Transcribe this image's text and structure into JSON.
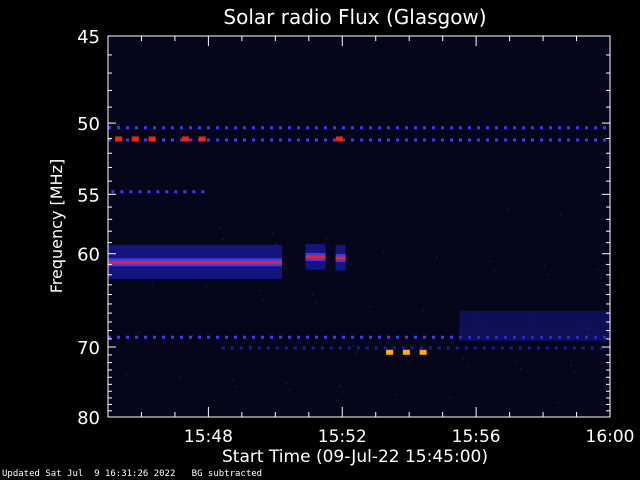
{
  "chart_data": {
    "type": "heatmap",
    "title": "Solar radio Flux (Glasgow)",
    "xlabel": "Start Time (09-Jul-22 15:45:00)",
    "ylabel": "Frequency [MHz]",
    "x_tick_labels": [
      "15:48",
      "15:52",
      "15:56",
      "16:00"
    ],
    "x_ticks_min": [
      3,
      7,
      11,
      15
    ],
    "xlim_min": [
      0,
      15
    ],
    "y_ticks": [
      45,
      50,
      55,
      60,
      70,
      80
    ],
    "y_scale": "reciprocal",
    "ylim": [
      45,
      80
    ],
    "grid": false,
    "background_color": "#06061a",
    "colors": {
      "weak": "#1a1aa0",
      "medium": "#3a3aff",
      "strong": "#ff2000",
      "peak": "#ffb000"
    },
    "features": [
      {
        "kind": "continuous_band",
        "freq_mhz": 60.8,
        "t_start_min": 0.0,
        "t_end_min": 5.2,
        "width_mhz": 1.6,
        "intensity": "strong"
      },
      {
        "kind": "continuous_band",
        "freq_mhz": 60.3,
        "t_start_min": 5.9,
        "t_end_min": 6.5,
        "width_mhz": 1.2,
        "intensity": "strong"
      },
      {
        "kind": "continuous_band",
        "freq_mhz": 60.4,
        "t_start_min": 6.8,
        "t_end_min": 7.1,
        "width_mhz": 1.2,
        "intensity": "strong"
      },
      {
        "kind": "dashed_line",
        "freq_mhz": 50.3,
        "t_start_min": 0.0,
        "t_end_min": 15.0,
        "intensity": "medium"
      },
      {
        "kind": "dashed_line",
        "freq_mhz": 51.1,
        "t_start_min": 0.0,
        "t_end_min": 15.0,
        "intensity": "medium"
      },
      {
        "kind": "dashed_line",
        "freq_mhz": 54.8,
        "t_start_min": 0.1,
        "t_end_min": 2.9,
        "intensity": "medium"
      },
      {
        "kind": "dashed_line",
        "freq_mhz": 68.8,
        "t_start_min": 0.0,
        "t_end_min": 15.0,
        "intensity": "medium"
      },
      {
        "kind": "dashed_line",
        "freq_mhz": 70.1,
        "t_start_min": 3.4,
        "t_end_min": 15.0,
        "intensity": "weak"
      },
      {
        "kind": "patch",
        "freq_mhz": 67.5,
        "t_start_min": 10.5,
        "t_end_min": 15.0,
        "width_mhz": 3.5,
        "intensity": "weak"
      },
      {
        "kind": "spot",
        "freq_mhz": 51.0,
        "t_min": [
          0.3,
          0.8,
          1.3,
          2.3,
          2.8,
          6.9
        ],
        "intensity": "strong"
      },
      {
        "kind": "spot",
        "freq_mhz": 70.6,
        "t_min": [
          8.4,
          8.9,
          9.4
        ],
        "intensity": "peak"
      }
    ]
  },
  "footer": {
    "updated": "Updated Sat Jul  9 16:31:26 2022",
    "note": "BG subtracted"
  }
}
